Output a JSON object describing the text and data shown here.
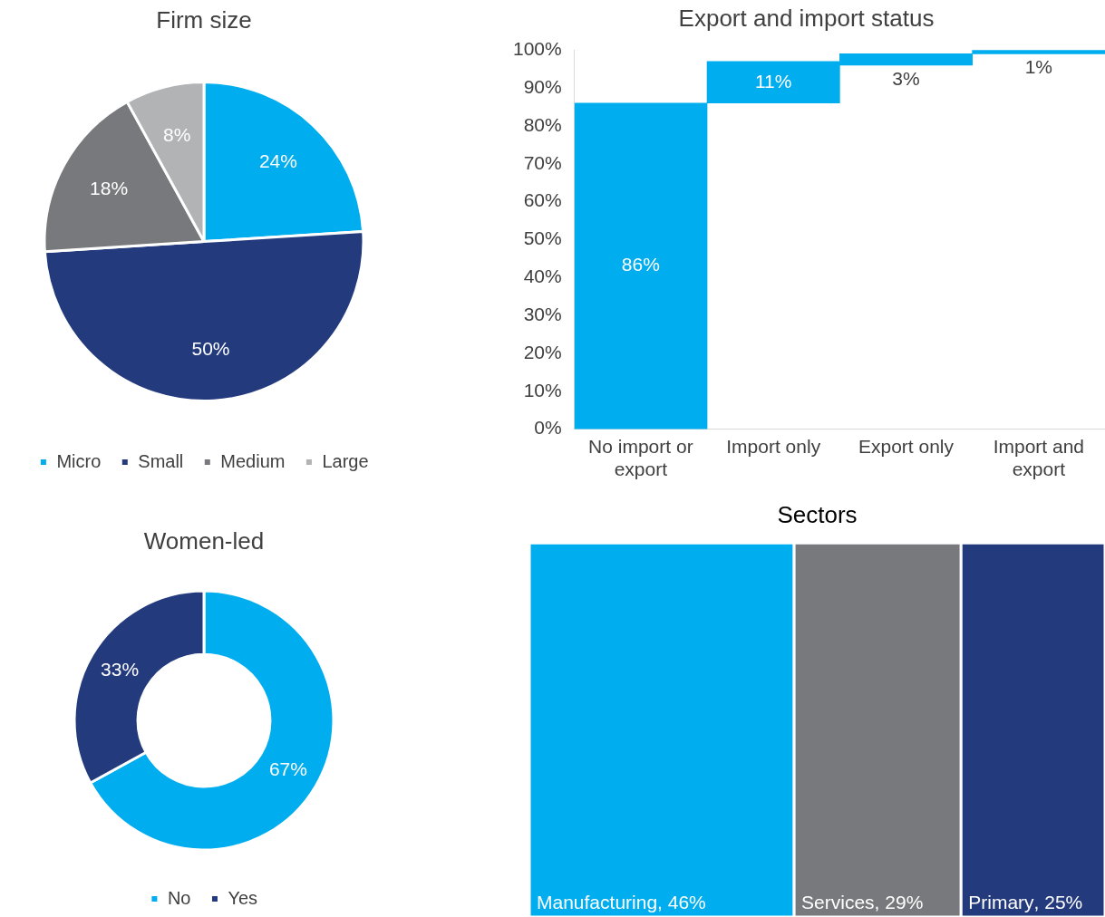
{
  "chart_data": [
    {
      "type": "pie",
      "title": "Firm size",
      "categories": [
        "Micro",
        "Small",
        "Medium",
        "Large"
      ],
      "values": [
        24,
        50,
        18,
        8
      ],
      "colors": [
        "#00adee",
        "#233a7d",
        "#77797c",
        "#b1b3b5"
      ],
      "value_labels": [
        "24%",
        "50%",
        "18%",
        "8%"
      ],
      "legend": "bottom"
    },
    {
      "type": "bar",
      "title": "Export and import status",
      "categories": [
        "No import or export",
        "Import only",
        "Export only",
        "Import and export"
      ],
      "values": [
        86,
        11,
        3,
        1
      ],
      "base": [
        0,
        86,
        96,
        99
      ],
      "color": "#00adee",
      "value_labels": [
        "86%",
        "11%",
        "3%",
        "1%"
      ],
      "ylim": [
        0,
        100
      ],
      "yticks": [
        {
          "value": 0,
          "label": "0%"
        },
        {
          "value": 10,
          "label": "10%"
        },
        {
          "value": 20,
          "label": "20%"
        },
        {
          "value": 30,
          "label": "30%"
        },
        {
          "value": 40,
          "label": "40%"
        },
        {
          "value": 50,
          "label": "50%"
        },
        {
          "value": 60,
          "label": "60%"
        },
        {
          "value": 70,
          "label": "70%"
        },
        {
          "value": 80,
          "label": "80%"
        },
        {
          "value": 90,
          "label": "90%"
        },
        {
          "value": 100,
          "label": "100%"
        }
      ]
    },
    {
      "type": "donut",
      "title": "Women-led",
      "categories": [
        "No",
        "Yes"
      ],
      "values": [
        67,
        33
      ],
      "colors": [
        "#00adee",
        "#233a7d"
      ],
      "value_labels": [
        "67%",
        "33%"
      ],
      "legend": "bottom"
    },
    {
      "type": "other",
      "title": "Sectors",
      "categories": [
        "Manufacturing",
        "Services",
        "Primary"
      ],
      "values": [
        46,
        29,
        25
      ],
      "colors": [
        "#00adee",
        "#77797c",
        "#233a7d"
      ],
      "value_labels": [
        ", 46%",
        ", 29%",
        ", 25%"
      ]
    }
  ]
}
